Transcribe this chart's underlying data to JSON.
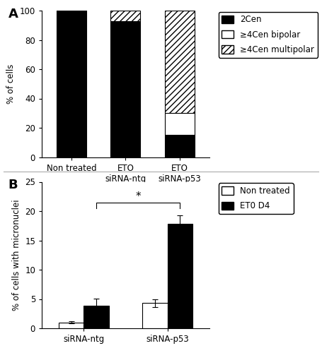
{
  "panel_A": {
    "categories": [
      "Non treated",
      "ETO\nsiRNA-ntg",
      "ETO\nsiRNA-p53"
    ],
    "series": {
      "2cen": [
        100,
        93,
        15
      ],
      "bipolar": [
        0,
        0,
        15
      ],
      "multipolar": [
        0,
        7,
        70
      ]
    },
    "ylabel": "% of cells",
    "ylim": [
      0,
      100
    ],
    "yticks": [
      0,
      20,
      40,
      60,
      80,
      100
    ],
    "legend_labels": [
      "2Cen",
      "≥4Cen bipolar",
      "≥4Cen multipolar"
    ]
  },
  "panel_B": {
    "group_labels": [
      "siRNA-ntg",
      "siRNA-p53"
    ],
    "series": {
      "non_treated": [
        1.0,
        4.3
      ],
      "eto_d4": [
        3.8,
        17.8
      ]
    },
    "errors": {
      "non_treated": [
        0.15,
        0.7
      ],
      "eto_d4": [
        1.3,
        1.5
      ]
    },
    "ylabel": "% of cells with micronuclei",
    "ylim": [
      0,
      25
    ],
    "yticks": [
      0,
      5,
      10,
      15,
      20,
      25
    ],
    "legend_labels": [
      "Non treated",
      "ET0 D4"
    ]
  },
  "background_color": "#ffffff",
  "panel_label_fontsize": 13,
  "tick_fontsize": 8.5,
  "label_fontsize": 8.5,
  "legend_fontsize": 8.5
}
